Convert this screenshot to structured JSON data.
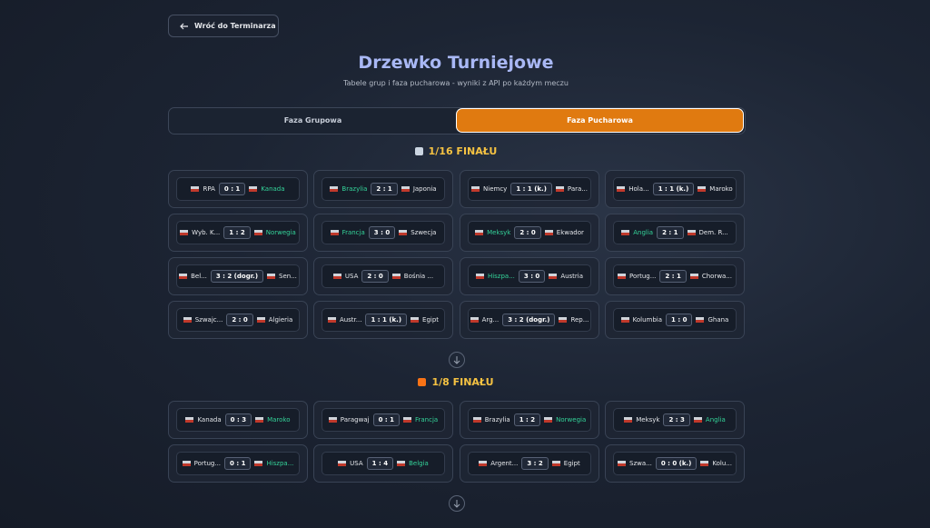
{
  "header": {
    "back_button": "Wróć do Terminarza",
    "title": "Drzewko Turniejowe",
    "subtitle": "Tabele grup i faza pucharowa - wyniki z API po każdym meczu"
  },
  "tabs": [
    {
      "label": "Faza Grupowa",
      "active": false
    },
    {
      "label": "Faza Pucharowa",
      "active": true
    }
  ],
  "sections": [
    {
      "title": "1/16 FINAŁU",
      "matches": [
        {
          "home": "RPA",
          "score": "0 : 1",
          "away": "Kanada",
          "winner": "away"
        },
        {
          "home": "Brazylia",
          "score": "2 : 1",
          "away": "Japonia",
          "winner": "home"
        },
        {
          "home": "Niemcy",
          "score": "1 : 1 (k.)",
          "away": "Para...",
          "winner": null
        },
        {
          "home": "Hola...",
          "score": "1 : 1 (k.)",
          "away": "Maroko",
          "winner": null
        },
        {
          "home": "Wyb. K...",
          "score": "1 : 2",
          "away": "Norwegia",
          "winner": "away"
        },
        {
          "home": "Francja",
          "score": "3 : 0",
          "away": "Szwecja",
          "winner": "home"
        },
        {
          "home": "Meksyk",
          "score": "2 : 0",
          "away": "Ekwador",
          "winner": "home"
        },
        {
          "home": "Anglia",
          "score": "2 : 1",
          "away": "Dem. R...",
          "winner": "home"
        },
        {
          "home": "Bel...",
          "score": "3 : 2 (dogr.)",
          "away": "Sen...",
          "winner": null
        },
        {
          "home": "USA",
          "score": "2 : 0",
          "away": "Bośnia ...",
          "winner": null
        },
        {
          "home": "Hiszpa...",
          "score": "3 : 0",
          "away": "Austria",
          "winner": "home"
        },
        {
          "home": "Portug...",
          "score": "2 : 1",
          "away": "Chorwa...",
          "winner": null
        },
        {
          "home": "Szwajc...",
          "score": "2 : 0",
          "away": "Algieria",
          "winner": null
        },
        {
          "home": "Austr...",
          "score": "1 : 1 (k.)",
          "away": "Egipt",
          "winner": null
        },
        {
          "home": "Arg...",
          "score": "3 : 2 (dogr.)",
          "away": "Rep...",
          "winner": null
        },
        {
          "home": "Kolumbia",
          "score": "1 : 0",
          "away": "Ghana",
          "winner": null
        }
      ]
    },
    {
      "title": "1/8 FINAŁU",
      "matches": [
        {
          "home": "Kanada",
          "score": "0 : 3",
          "away": "Maroko",
          "winner": "away"
        },
        {
          "home": "Paragwaj",
          "score": "0 : 1",
          "away": "Francja",
          "winner": "away"
        },
        {
          "home": "Brazylia",
          "score": "1 : 2",
          "away": "Norwegia",
          "winner": "away"
        },
        {
          "home": "Meksyk",
          "score": "2 : 3",
          "away": "Anglia",
          "winner": "away"
        },
        {
          "home": "Portug...",
          "score": "0 : 1",
          "away": "Hiszpa...",
          "winner": "away"
        },
        {
          "home": "USA",
          "score": "1 : 4",
          "away": "Belgia",
          "winner": "away"
        },
        {
          "home": "Argent...",
          "score": "3 : 2",
          "away": "Egipt",
          "winner": null
        },
        {
          "home": "Szwa...",
          "score": "0 : 0 (k.)",
          "away": "Kolu...",
          "winner": null
        }
      ]
    }
  ]
}
